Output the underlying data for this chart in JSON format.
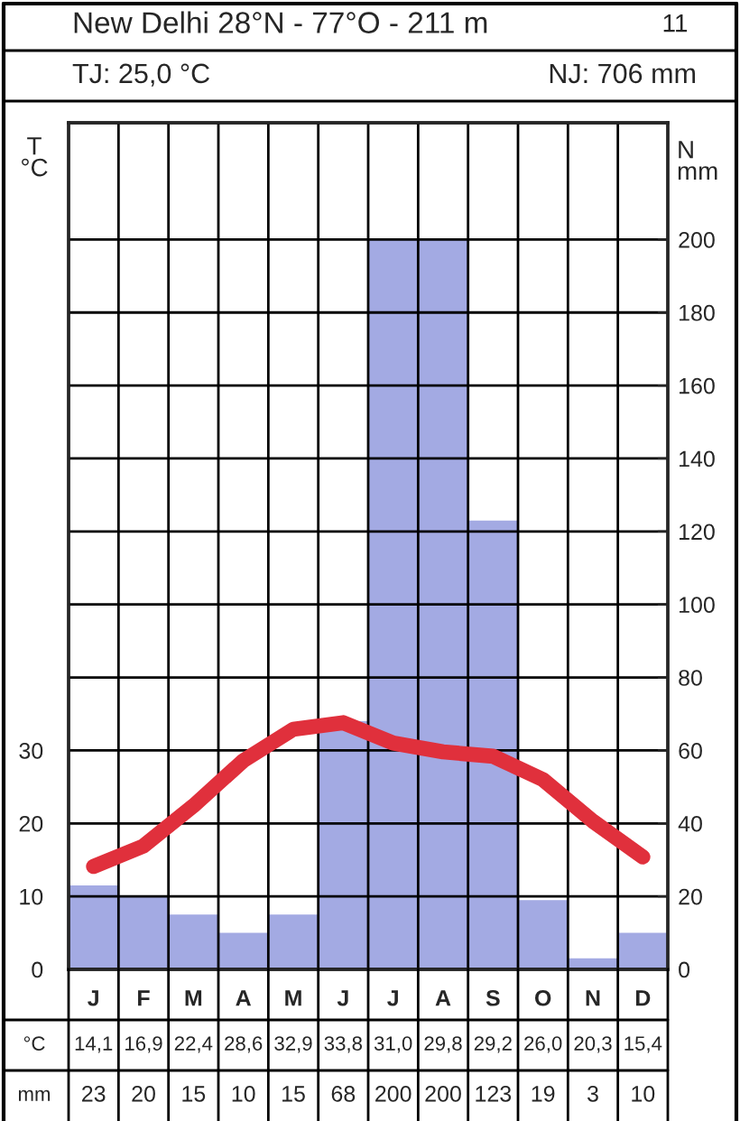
{
  "chart_data": {
    "type": "line",
    "title": "New Delhi 28°N - 77°O - 211 m",
    "subtitle": "TJ: 25,0 °C",
    "annotations": [
      "11",
      "NJ: 706 mm",
      "°C",
      "mm"
    ],
    "ylabel": "T\n°C",
    "y2label": "N\nmm",
    "categories": [
      "J",
      "F",
      "M",
      "A",
      "M",
      "J",
      "J",
      "A",
      "S",
      "O",
      "N",
      "D"
    ],
    "series": [
      {
        "type": "bar",
        "axis": "y2",
        "color": "#a3aae3",
        "values": [
          23,
          20,
          15,
          10,
          15,
          68,
          200,
          200,
          123,
          19,
          3,
          10
        ],
        "value_labels": [
          "23",
          "20",
          "15",
          "10",
          "15",
          "68",
          "200",
          "200",
          "123",
          "19",
          "3",
          "10"
        ]
      },
      {
        "color": "#e0303c",
        "values": [
          14.1,
          16.9,
          22.4,
          28.6,
          32.9,
          33.8,
          31.0,
          29.8,
          29.2,
          26.0,
          20.3,
          15.4
        ],
        "value_labels": [
          "14,1",
          "16,9",
          "22,4",
          "28,6",
          "32,9",
          "33,8",
          "31,0",
          "29,8",
          "29,2",
          "26,0",
          "20,3",
          "15,4"
        ]
      }
    ],
    "ylim": [
      0,
      116
    ],
    "yticks": [
      0,
      10,
      20,
      30
    ],
    "y2lim": [
      0,
      232
    ],
    "y2ticks": [
      0,
      20,
      40,
      60,
      80,
      100,
      120,
      140,
      160,
      180,
      200
    ],
    "grid": true,
    "line_style": "solid"
  }
}
